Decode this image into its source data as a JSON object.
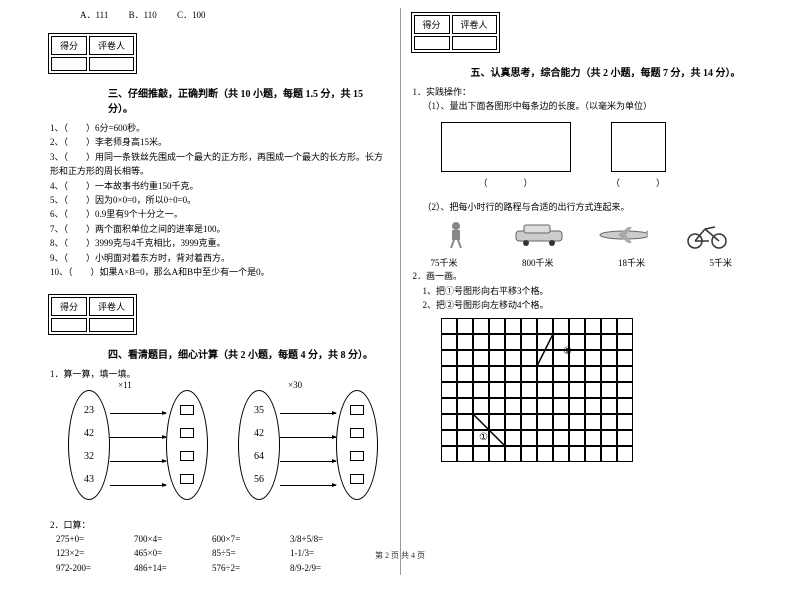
{
  "options_row": {
    "a": "A．111",
    "b": "B．110",
    "c": "C．100"
  },
  "score_header": {
    "col1": "得分",
    "col2": "评卷人"
  },
  "section3": {
    "title": "三、仔细推敲，正确判断（共 10 小题，每题 1.5 分，共 15 分）。",
    "items": [
      "1、（　　）6分=600秒。",
      "2、（　　）李老师身高15米。",
      "3、（　　）用同一条铁丝先围成一个最大的正方形，再围成一个最大的长方形。长方形和正方形的周长相等。",
      "4、（　　）一本故事书约重150千克。",
      "5、（　　）因为0×0=0，所以0÷0=0。",
      "6、（　　）0.9里有9个十分之一。",
      "7、（　　）两个面积单位之间的进率是100。",
      "8、（　　）3999克与4千克相比，3999克重。",
      "9、（　　）小明面对着东方时，背对着西方。",
      "10、（　　）如果A×B=0，那么A和B中至少有一个是0。"
    ]
  },
  "section4": {
    "title": "四、看清题目，细心计算（共 2 小题，每题 4 分，共 8 分）。",
    "q1_label": "1．算一算，填一填。",
    "group1": {
      "mult": "×11",
      "values": [
        "23",
        "42",
        "32",
        "43"
      ]
    },
    "group2": {
      "mult": "×30",
      "values": [
        "35",
        "42",
        "64",
        "56"
      ]
    },
    "q2_label": "2．口算：",
    "mental": [
      [
        "275+0=",
        "700×4=",
        "600×7=",
        "3/8+5/8="
      ],
      [
        "123×2=",
        "465×0=",
        "85÷5=",
        "1-1/3="
      ],
      [
        "972-200=",
        "486+14=",
        "576÷2=",
        "8/9-2/9="
      ]
    ]
  },
  "section5": {
    "title": "五、认真思考，综合能力（共 2 小题，每题 7 分，共 14 分）。",
    "q1_label": "1．实践操作：",
    "q1_1": "（1）、量出下面各图形中每条边的长度。（以毫米为单位）",
    "paren": "（　　　　）",
    "q1_2": "（2）、把每小时行的路程与合适的出行方式连起来。",
    "distances": [
      "75千米",
      "800千米",
      "18千米",
      "5千米"
    ],
    "q2_label": "2．画一画。",
    "q2_1": "1、把①号图形向右平移3个格。",
    "q2_2": "2、把②号图形向左移动4个格。",
    "shape_labels": {
      "one": "①",
      "two": "②"
    },
    "grid": {
      "cols": 12,
      "rows": 9,
      "cell_size": 16
    }
  },
  "footer": "第 2 页 共 4 页",
  "colors": {
    "text": "#000000",
    "bg": "#ffffff",
    "divider": "#999999"
  }
}
